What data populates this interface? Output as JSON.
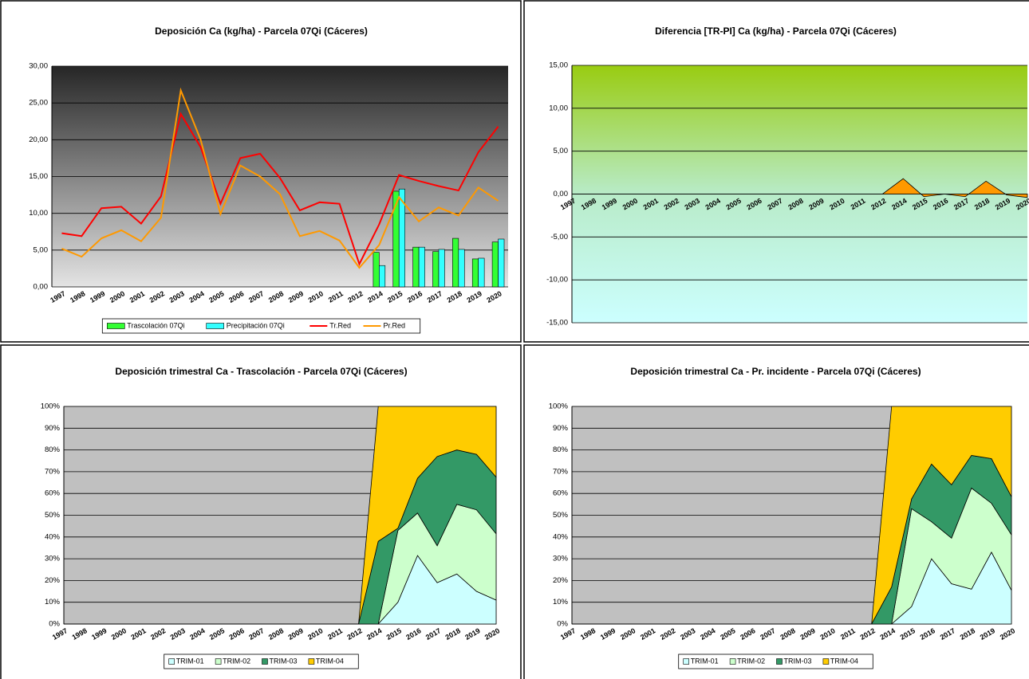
{
  "chart_data": [
    {
      "type": "bar",
      "title": "Deposición Ca (kg/ha) - Parcela 07Qi (Cáceres)",
      "categories": [
        "1997",
        "1998",
        "1999",
        "2000",
        "2001",
        "2002",
        "2003",
        "2004",
        "2005",
        "2006",
        "2007",
        "2008",
        "2009",
        "2010",
        "2011",
        "2012",
        "2014",
        "2015",
        "2016",
        "2017",
        "2018",
        "2019",
        "2020"
      ],
      "series": [
        {
          "name": "Trascolación 07Qi",
          "type": "bar",
          "color": "#33ff33",
          "values": [
            null,
            null,
            null,
            null,
            null,
            null,
            null,
            null,
            null,
            null,
            null,
            null,
            null,
            null,
            null,
            null,
            4.7,
            13.0,
            5.4,
            4.8,
            6.6,
            3.8,
            6.1
          ]
        },
        {
          "name": "Precipitación 07Qi",
          "type": "bar",
          "color": "#33ffff",
          "values": [
            null,
            null,
            null,
            null,
            null,
            null,
            null,
            null,
            null,
            null,
            null,
            null,
            null,
            null,
            null,
            null,
            2.9,
            13.3,
            5.4,
            5.1,
            5.1,
            3.9,
            6.5
          ]
        },
        {
          "name": "Tr.Red",
          "type": "line",
          "color": "#ff0000",
          "values": [
            7.3,
            6.9,
            10.7,
            10.9,
            8.6,
            12.3,
            23.5,
            19.0,
            11.3,
            17.5,
            18.1,
            14.8,
            10.4,
            11.5,
            11.3,
            3.1,
            8.5,
            15.2,
            14.4,
            13.7,
            13.1,
            18.3,
            21.8
          ]
        },
        {
          "name": "Pr.Red",
          "type": "line",
          "color": "#ff9900",
          "values": [
            5.2,
            4.1,
            6.6,
            7.7,
            6.2,
            9.4,
            26.7,
            20.0,
            9.9,
            16.5,
            15.0,
            12.6,
            6.9,
            7.6,
            6.3,
            2.6,
            5.7,
            12.2,
            8.9,
            10.8,
            9.7,
            13.5,
            11.7
          ]
        }
      ],
      "ylim": [
        0,
        30
      ],
      "yticks": [
        {
          "value": 0,
          "label": "0,00"
        },
        {
          "value": 5,
          "label": "5,00"
        },
        {
          "value": 10,
          "label": "10,00"
        },
        {
          "value": 15,
          "label": "15,00"
        },
        {
          "value": 20,
          "label": "20,00"
        },
        {
          "value": 25,
          "label": "25,00"
        },
        {
          "value": 30,
          "label": "30,00"
        }
      ],
      "grid": true,
      "legend": "bottom"
    },
    {
      "type": "area",
      "title": "Diferencia [TR-PI] Ca (kg/ha) - Parcela 07Qi (Cáceres)",
      "categories": [
        "1997",
        "1998",
        "1999",
        "2000",
        "2001",
        "2002",
        "2003",
        "2004",
        "2005",
        "2006",
        "2007",
        "2008",
        "2009",
        "2010",
        "2011",
        "2012",
        "2014",
        "2015",
        "2016",
        "2017",
        "2018",
        "2019",
        "2020"
      ],
      "values": [
        0,
        0,
        0,
        0,
        0,
        0,
        0,
        0,
        0,
        0,
        0,
        0,
        0,
        0,
        0,
        0,
        1.8,
        -0.3,
        0,
        -0.3,
        1.5,
        -0.1,
        -0.4
      ],
      "color": "#ff9900",
      "ylim": [
        -15,
        15
      ],
      "yticks": [
        {
          "value": -15,
          "label": "-15,00"
        },
        {
          "value": -10,
          "label": "-10,00"
        },
        {
          "value": -5,
          "label": "-5,00"
        },
        {
          "value": 0,
          "label": "0,00"
        },
        {
          "value": 5,
          "label": "5,00"
        },
        {
          "value": 10,
          "label": "10,00"
        },
        {
          "value": 15,
          "label": "15,00"
        }
      ],
      "grid": true
    },
    {
      "type": "stacked_area",
      "title": "Deposición trimestral Ca - Trascolación - Parcela 07Qi (Cáceres)",
      "categories": [
        "1997",
        "1998",
        "1999",
        "2000",
        "2001",
        "2002",
        "2003",
        "2004",
        "2005",
        "2006",
        "2007",
        "2008",
        "2009",
        "2010",
        "2011",
        "2012",
        "2014",
        "2015",
        "2016",
        "2017",
        "2018",
        "2019",
        "2020"
      ],
      "series": [
        {
          "name": "TRIM-01",
          "color": "#ccffff",
          "values": [
            0,
            0,
            0,
            0,
            0,
            0,
            0,
            0,
            0,
            0,
            0,
            0,
            0,
            0,
            0,
            0,
            0,
            10,
            31.5,
            19,
            23,
            15,
            11
          ]
        },
        {
          "name": "TRIM-02",
          "color": "#ccffcc",
          "values": [
            0,
            0,
            0,
            0,
            0,
            0,
            0,
            0,
            0,
            0,
            0,
            0,
            0,
            0,
            0,
            0,
            0,
            33,
            19.5,
            17,
            32,
            37.5,
            30.5
          ]
        },
        {
          "name": "TRIM-03",
          "color": "#339966",
          "values": [
            0,
            0,
            0,
            0,
            0,
            0,
            0,
            0,
            0,
            0,
            0,
            0,
            0,
            0,
            0,
            0,
            38,
            1,
            16,
            41,
            25,
            25.5,
            26
          ]
        },
        {
          "name": "TRIM-04",
          "color": "#ffcc00",
          "values": [
            0,
            0,
            0,
            0,
            0,
            0,
            0,
            0,
            0,
            0,
            0,
            0,
            0,
            0,
            0,
            0,
            62,
            56,
            33,
            23,
            20,
            22,
            32.5
          ]
        }
      ],
      "ylim": [
        0,
        100
      ],
      "yticks": [
        {
          "value": 0,
          "label": "0%"
        },
        {
          "value": 10,
          "label": "10%"
        },
        {
          "value": 20,
          "label": "20%"
        },
        {
          "value": 30,
          "label": "30%"
        },
        {
          "value": 40,
          "label": "40%"
        },
        {
          "value": 50,
          "label": "50%"
        },
        {
          "value": 60,
          "label": "60%"
        },
        {
          "value": 70,
          "label": "70%"
        },
        {
          "value": 80,
          "label": "80%"
        },
        {
          "value": 90,
          "label": "90%"
        },
        {
          "value": 100,
          "label": "100%"
        }
      ],
      "grid": true,
      "legend": "bottom"
    },
    {
      "type": "stacked_area",
      "title": "Deposición trimestral Ca - Pr. incidente - Parcela 07Qi (Cáceres)",
      "categories": [
        "1997",
        "1998",
        "1999",
        "2000",
        "2001",
        "2002",
        "2003",
        "2004",
        "2005",
        "2006",
        "2007",
        "2008",
        "2009",
        "2010",
        "2011",
        "2012",
        "2014",
        "2015",
        "2016",
        "2017",
        "2018",
        "2019",
        "2020"
      ],
      "series": [
        {
          "name": "TRIM-01",
          "color": "#ccffff",
          "values": [
            0,
            0,
            0,
            0,
            0,
            0,
            0,
            0,
            0,
            0,
            0,
            0,
            0,
            0,
            0,
            0,
            0,
            8,
            30,
            18.5,
            16,
            33,
            15.5
          ]
        },
        {
          "name": "TRIM-02",
          "color": "#ccffcc",
          "values": [
            0,
            0,
            0,
            0,
            0,
            0,
            0,
            0,
            0,
            0,
            0,
            0,
            0,
            0,
            0,
            0,
            0,
            45,
            17,
            21,
            46.5,
            22.5,
            25.5
          ]
        },
        {
          "name": "TRIM-03",
          "color": "#339966",
          "values": [
            0,
            0,
            0,
            0,
            0,
            0,
            0,
            0,
            0,
            0,
            0,
            0,
            0,
            0,
            0,
            0,
            17,
            4.5,
            26.5,
            24.5,
            15,
            20.5,
            17.5
          ]
        },
        {
          "name": "TRIM-04",
          "color": "#ffcc00",
          "values": [
            0,
            0,
            0,
            0,
            0,
            0,
            0,
            0,
            0,
            0,
            0,
            0,
            0,
            0,
            0,
            0,
            83,
            42.5,
            26.5,
            36,
            22.5,
            24,
            41.5
          ]
        }
      ],
      "ylim": [
        0,
        100
      ],
      "yticks": [
        {
          "value": 0,
          "label": "0%"
        },
        {
          "value": 10,
          "label": "10%"
        },
        {
          "value": 20,
          "label": "20%"
        },
        {
          "value": 30,
          "label": "30%"
        },
        {
          "value": 40,
          "label": "40%"
        },
        {
          "value": 50,
          "label": "50%"
        },
        {
          "value": 60,
          "label": "60%"
        },
        {
          "value": 70,
          "label": "70%"
        },
        {
          "value": 80,
          "label": "80%"
        },
        {
          "value": 90,
          "label": "90%"
        },
        {
          "value": 100,
          "label": "100%"
        }
      ],
      "grid": true,
      "legend": "bottom"
    }
  ]
}
